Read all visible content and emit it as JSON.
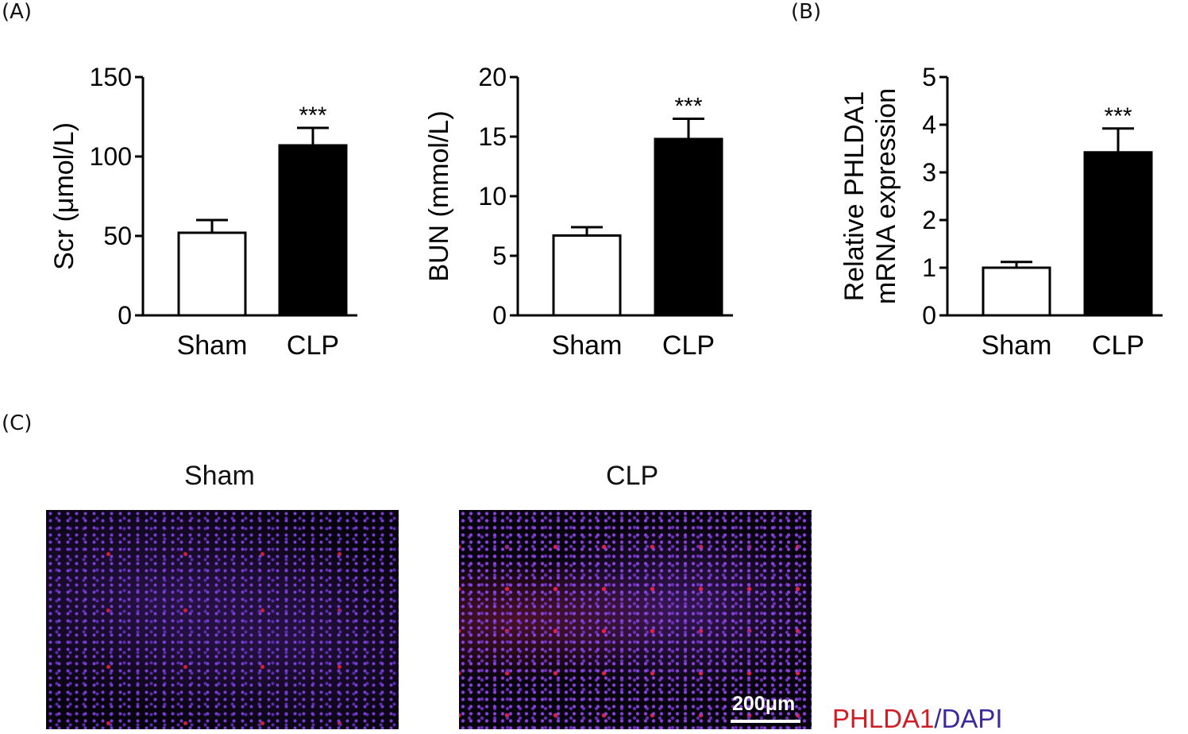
{
  "panels": {
    "a": "(A)",
    "b": "(B)",
    "c": "(C)"
  },
  "chart_data": [
    {
      "type": "bar",
      "title": "",
      "ylabel": "Scr (μmol/L)",
      "xlabel": "",
      "categories": [
        "Sham",
        "CLP"
      ],
      "values": [
        52,
        107
      ],
      "errors": [
        8,
        11
      ],
      "ylim": [
        0,
        150
      ],
      "yticks": [
        0,
        50,
        100,
        150
      ],
      "significance": [
        "",
        "***"
      ],
      "colors": [
        "#ffffff",
        "#000000"
      ]
    },
    {
      "type": "bar",
      "title": "",
      "ylabel": "BUN (mmol/L)",
      "xlabel": "",
      "categories": [
        "Sham",
        "CLP"
      ],
      "values": [
        6.7,
        14.8
      ],
      "errors": [
        0.7,
        1.7
      ],
      "ylim": [
        0,
        20
      ],
      "yticks": [
        0,
        5,
        10,
        15,
        20
      ],
      "significance": [
        "",
        "***"
      ],
      "colors": [
        "#ffffff",
        "#000000"
      ]
    },
    {
      "type": "bar",
      "title": "",
      "ylabel": [
        "Relative PHLDA1",
        "mRNA expression"
      ],
      "xlabel": "",
      "categories": [
        "Sham",
        "CLP"
      ],
      "values": [
        1.0,
        3.42
      ],
      "errors": [
        0.12,
        0.5
      ],
      "ylim": [
        0,
        5
      ],
      "yticks": [
        0,
        1,
        2,
        3,
        4,
        5
      ],
      "significance": [
        "",
        "***"
      ],
      "colors": [
        "#ffffff",
        "#000000"
      ]
    }
  ],
  "images": {
    "sham_title": "Sham",
    "clp_title": "CLP",
    "scale": "200μm"
  },
  "legend": {
    "phlda1": "PHLDA1",
    "sep": "/",
    "dapi": "DAPI",
    "phlda1_color": "#d01c24",
    "dapi_color": "#3a2a9a"
  }
}
